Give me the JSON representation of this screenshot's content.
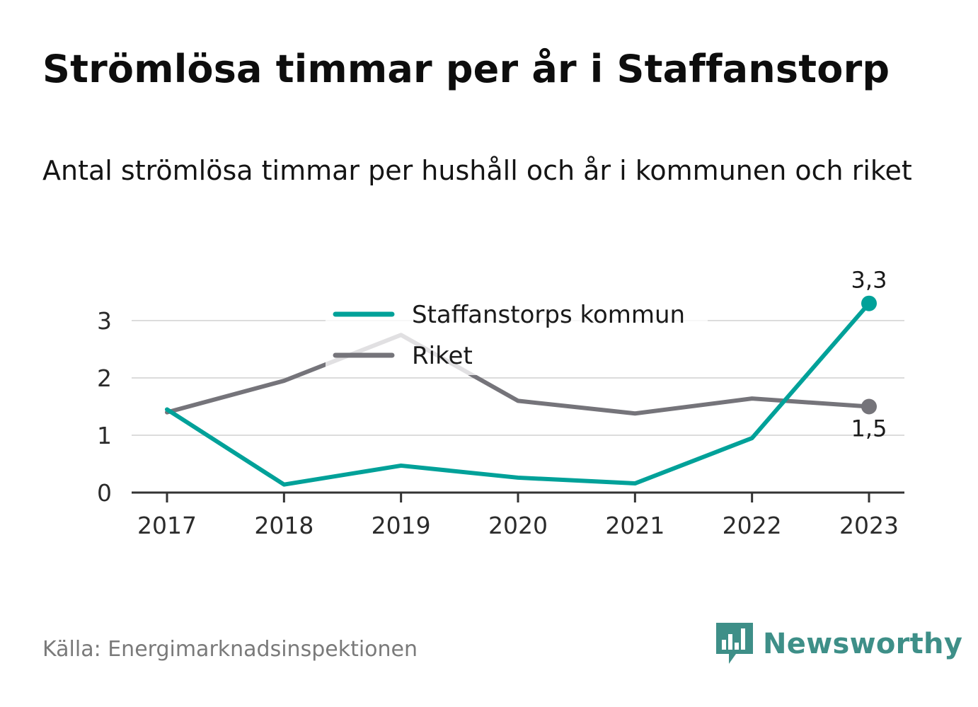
{
  "title": "Strömlösa timmar per år i Staffanstorp",
  "subtitle": "Antal strömlösa timmar per hushåll och år i kommunen och riket",
  "source": "Källa: Energimarknadsinspektionen",
  "brand": {
    "name": "Newsworthy",
    "icon": "bar-chart-logo-icon",
    "color": "#3e8f88"
  },
  "chart_data": {
    "type": "line",
    "categories": [
      "2017",
      "2018",
      "2019",
      "2020",
      "2021",
      "2022",
      "2023"
    ],
    "y_ticks": [
      "0",
      "1",
      "2",
      "3"
    ],
    "ylim": [
      0,
      3.4
    ],
    "grid": true,
    "legend_position": "top-center",
    "series": [
      {
        "name": "Staffanstorps kommun",
        "color": "#00a199",
        "values": [
          1.45,
          0.14,
          0.47,
          0.26,
          0.16,
          0.95,
          3.3
        ],
        "end_label": "3,3"
      },
      {
        "name": "Riket",
        "color": "#75747a",
        "values": [
          1.4,
          1.95,
          2.75,
          1.6,
          1.38,
          1.64,
          1.5
        ],
        "end_label": "1,5"
      }
    ]
  }
}
